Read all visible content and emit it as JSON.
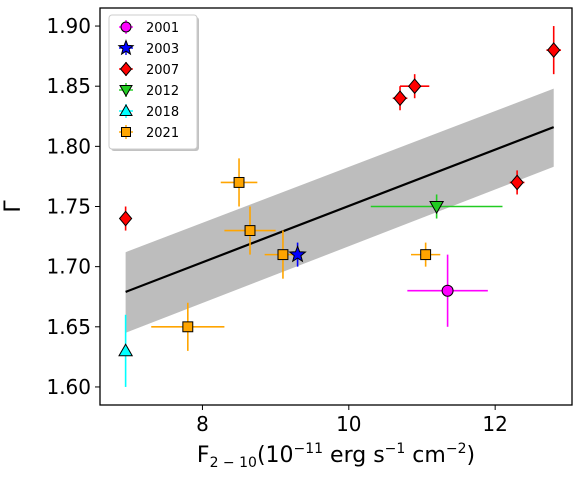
{
  "chart_data": {
    "type": "scatter",
    "title": "",
    "xlabel": {
      "main": "F",
      "sub": "2 − 10",
      "unit_open": "(10",
      "unit_exp": "−11",
      "unit_mid": " erg s",
      "unit_exp2": "−1",
      "unit_mid2": " cm",
      "unit_exp3": "−2",
      "unit_close": ")"
    },
    "ylabel": "Γ",
    "xlim": [
      6.6,
      13.05
    ],
    "ylim": [
      1.585,
      1.915
    ],
    "xticks": [
      8,
      10,
      12
    ],
    "xtick_labels": [
      "8",
      "10",
      "12"
    ],
    "yticks": [
      1.6,
      1.65,
      1.7,
      1.75,
      1.8,
      1.85,
      1.9
    ],
    "ytick_labels": [
      "1.60",
      "1.65",
      "1.70",
      "1.75",
      "1.80",
      "1.85",
      "1.90"
    ],
    "grid": false,
    "legend_position": "top-left",
    "series": [
      {
        "name": "2001",
        "marker": "circle",
        "color": "#ff00ff",
        "line_color": "#ff00ff",
        "points": [
          {
            "x": 11.35,
            "y": 1.68,
            "xerr": 0.55,
            "yerr": 0.03
          }
        ]
      },
      {
        "name": "2003",
        "marker": "star",
        "color": "#0000ff",
        "line_color": "#0000ff",
        "points": [
          {
            "x": 9.3,
            "y": 1.71,
            "xerr": 0.05,
            "yerr": 0.01
          }
        ]
      },
      {
        "name": "2007",
        "marker": "diamond",
        "color": "#ff0000",
        "line_color": "#ff0000",
        "points": [
          {
            "x": 6.95,
            "y": 1.74,
            "xerr": 0.0,
            "yerr": 0.01
          },
          {
            "x": 10.7,
            "y": 1.84,
            "xerr": 0.1,
            "yerr": 0.01
          },
          {
            "x": 10.9,
            "y": 1.85,
            "xerr": 0.2,
            "yerr": 0.01
          },
          {
            "x": 12.3,
            "y": 1.77,
            "xerr": 0.1,
            "yerr": 0.01
          },
          {
            "x": 12.8,
            "y": 1.88,
            "xerr": 0.1,
            "yerr": 0.02
          }
        ]
      },
      {
        "name": "2012",
        "marker": "triangle-down",
        "color": "#22cc22",
        "line_color": "#22cc22",
        "points": [
          {
            "x": 11.2,
            "y": 1.75,
            "xerr": 0.9,
            "yerr": 0.01
          }
        ]
      },
      {
        "name": "2018",
        "marker": "triangle-up",
        "color": "#00ffff",
        "line_color": "#00ffff",
        "points": [
          {
            "x": 6.95,
            "y": 1.63,
            "xerr": 0.0,
            "yerr": 0.03
          }
        ]
      },
      {
        "name": "2021",
        "marker": "square",
        "color": "#ffa500",
        "line_color": "#ffa500",
        "points": [
          {
            "x": 7.8,
            "y": 1.65,
            "xerr": 0.5,
            "yerr": 0.02
          },
          {
            "x": 8.5,
            "y": 1.77,
            "xerr": 0.25,
            "yerr": 0.02
          },
          {
            "x": 8.65,
            "y": 1.73,
            "xerr": 0.35,
            "yerr": 0.02
          },
          {
            "x": 9.1,
            "y": 1.71,
            "xerr": 0.25,
            "yerr": 0.02
          },
          {
            "x": 11.05,
            "y": 1.71,
            "xerr": 0.2,
            "yerr": 0.01
          }
        ]
      }
    ],
    "fit_line": {
      "x": [
        6.95,
        12.8
      ],
      "y": [
        1.679,
        1.816
      ],
      "color": "#000000"
    },
    "confidence_band": {
      "x": [
        6.95,
        12.8
      ],
      "lower": [
        1.645,
        1.783
      ],
      "upper": [
        1.712,
        1.848
      ],
      "color": "#bdbdbd"
    }
  }
}
